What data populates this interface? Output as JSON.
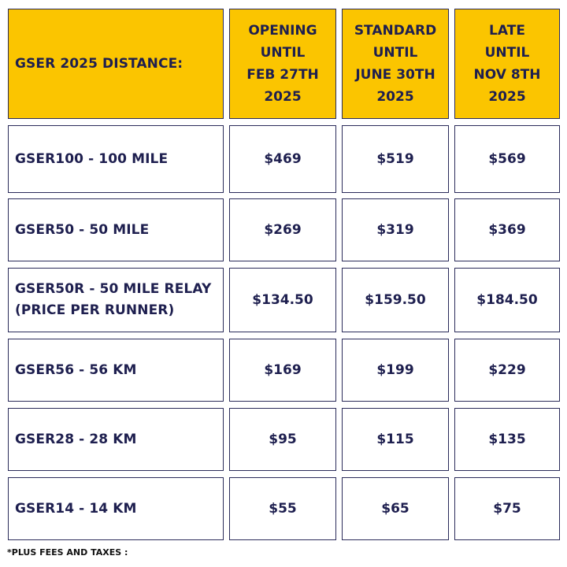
{
  "table": {
    "corner_label": "GSER 2025 DISTANCE:",
    "columns": [
      {
        "lines": [
          "OPENING",
          "UNTIL",
          "FEB 27TH",
          "2025"
        ]
      },
      {
        "lines": [
          "STANDARD",
          "UNTIL",
          "JUNE 30TH",
          "2025"
        ]
      },
      {
        "lines": [
          "LATE",
          "UNTIL",
          "NOV 8TH",
          "2025"
        ]
      }
    ],
    "rows": [
      {
        "label_lines": [
          "GSER100 - 100 MILE"
        ],
        "prices": [
          "$469",
          "$519",
          "$569"
        ]
      },
      {
        "label_lines": [
          "GSER50 - 50 MILE"
        ],
        "prices": [
          "$269",
          "$319",
          "$369"
        ]
      },
      {
        "label_lines": [
          "GSER50R - 50 MILE RELAY",
          "(PRICE PER RUNNER)"
        ],
        "prices": [
          "$134.50",
          "$159.50",
          "$184.50"
        ]
      },
      {
        "label_lines": [
          "GSER56 - 56 KM"
        ],
        "prices": [
          "$169",
          "$199",
          "$229"
        ]
      },
      {
        "label_lines": [
          "GSER28 - 28 KM"
        ],
        "prices": [
          "$95",
          "$115",
          "$135"
        ]
      },
      {
        "label_lines": [
          "GSER14 - 14 KM"
        ],
        "prices": [
          "$55",
          "$65",
          "$75"
        ]
      }
    ]
  },
  "footnote": "*PLUS FEES AND TAXES :",
  "colors": {
    "header_background": "#fbc500",
    "text": "#1e1f4f",
    "border": "#2a2b5a"
  }
}
